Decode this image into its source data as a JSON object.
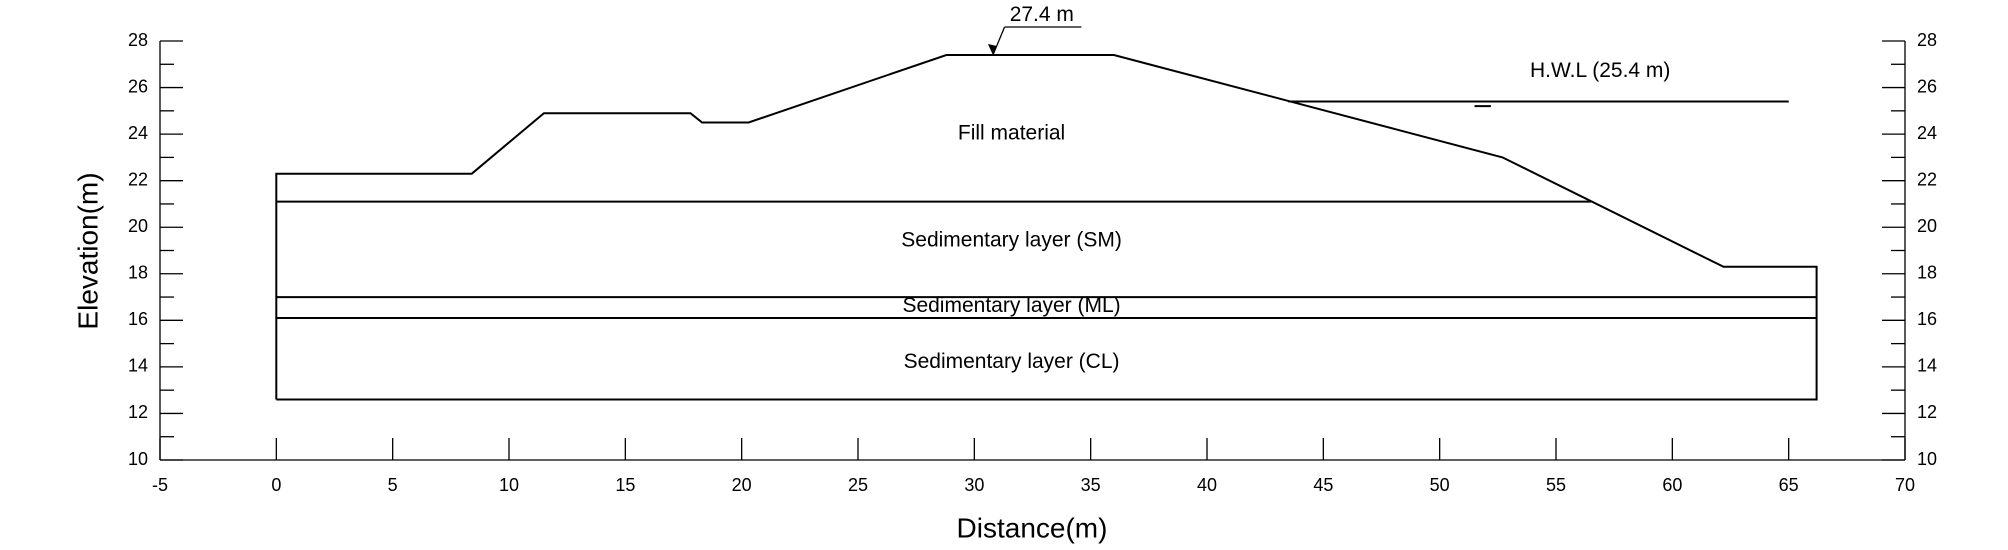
{
  "chart_data": {
    "type": "line",
    "xlabel": "Distance(m)",
    "ylabel": "Elevation(m)",
    "xlim": [
      -5,
      70
    ],
    "xticks": [
      -5,
      0,
      5,
      10,
      15,
      20,
      25,
      30,
      35,
      40,
      45,
      50,
      55,
      60,
      65,
      70
    ],
    "ylim": [
      10,
      28
    ],
    "yticks": [
      10,
      12,
      14,
      16,
      18,
      20,
      22,
      24,
      26,
      28
    ],
    "grid": false,
    "series": [
      {
        "color": "#000000",
        "x": [
          0,
          0,
          8.4,
          11.5,
          17.8,
          18.3,
          20.3,
          28.8,
          36,
          52.7,
          62.2,
          66.2,
          66.2,
          0
        ],
        "values": [
          12.6,
          22.3,
          22.3,
          24.9,
          24.9,
          24.5,
          24.5,
          27.4,
          27.4,
          23,
          18.3,
          18.3,
          12.6,
          12.6
        ]
      },
      {
        "color": "#000000",
        "x": [
          0,
          56.5
        ],
        "values": [
          21.1,
          21.1
        ]
      },
      {
        "color": "#000000",
        "x": [
          0,
          66.2
        ],
        "values": [
          17,
          17
        ]
      },
      {
        "color": "#000000",
        "x": [
          0,
          66.2
        ],
        "values": [
          16.1,
          16.1
        ]
      },
      {
        "color": "#000000",
        "x": [
          43.5,
          65
        ],
        "values": [
          25.4,
          25.4
        ]
      }
    ],
    "annotations": [
      "27.4 m",
      "H.W.L (25.4 m)",
      "Fill material",
      "Sedimentary layer (SM)",
      "Sedimentary layer (ML)",
      "Sedimentary layer (CL)"
    ]
  }
}
